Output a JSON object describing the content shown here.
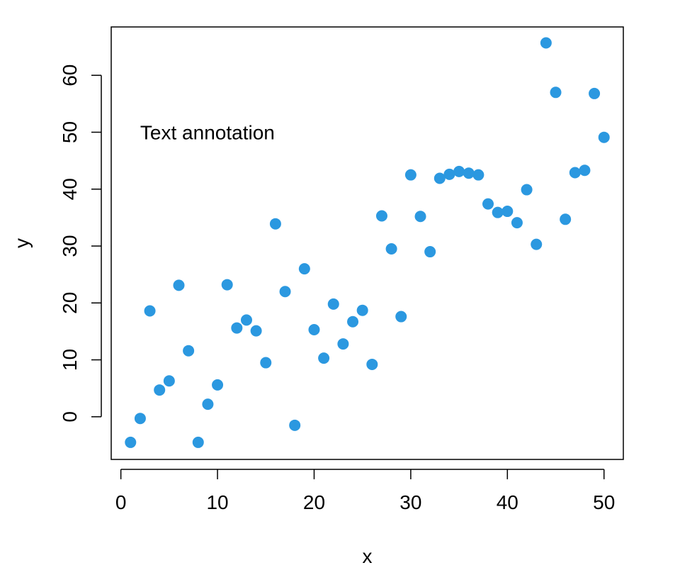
{
  "chart_data": {
    "type": "scatter",
    "xlabel": "x",
    "ylabel": "y",
    "xlim": [
      -1,
      52
    ],
    "ylim": [
      -7.5,
      68.5
    ],
    "xticks": [
      0,
      10,
      20,
      30,
      40,
      50
    ],
    "yticks": [
      0,
      10,
      20,
      30,
      40,
      50,
      60
    ],
    "grid": false,
    "point_color": "#2b98e0",
    "annotation": {
      "text": "Text annotation",
      "x": 2,
      "y": 50
    },
    "series": [
      {
        "x": [
          1,
          2,
          3,
          4,
          5,
          6,
          7,
          8,
          9,
          10,
          11,
          12,
          13,
          14,
          15,
          16,
          17,
          18,
          19,
          20,
          21,
          22,
          23,
          24,
          25,
          26,
          27,
          28,
          29,
          30,
          31,
          32,
          33,
          34,
          35,
          36,
          37,
          38,
          39,
          40,
          41,
          42,
          43,
          44,
          45,
          46,
          47,
          48,
          49,
          50
        ],
        "y": [
          -4.5,
          -0.3,
          18.6,
          4.7,
          6.3,
          23.1,
          11.6,
          -4.5,
          2.2,
          5.6,
          23.2,
          15.6,
          17.0,
          15.1,
          9.5,
          33.9,
          22.0,
          -1.5,
          26.0,
          15.3,
          10.3,
          19.8,
          12.8,
          16.7,
          18.7,
          9.2,
          35.3,
          29.5,
          17.6,
          42.5,
          35.2,
          29.0,
          41.9,
          42.6,
          43.1,
          42.8,
          42.5,
          37.4,
          35.9,
          36.1,
          34.1,
          39.9,
          30.3,
          65.7,
          57.0,
          34.7,
          42.9,
          43.3,
          56.8,
          49.1
        ]
      }
    ]
  }
}
